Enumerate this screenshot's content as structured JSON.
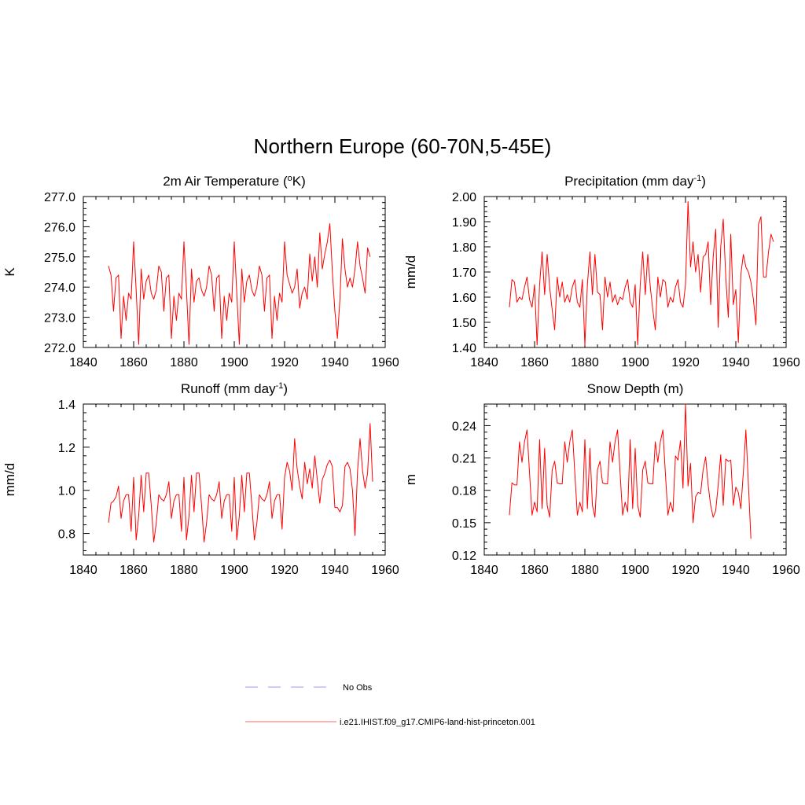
{
  "title": "Northern Europe (60-70N,5-45E)",
  "legend": [
    {
      "label": "No Obs",
      "color": "#9999ff",
      "style": "dashed"
    },
    {
      "label": "i.e21.IHIST.f09_g17.CMIP6-land-hist-princeton.001",
      "color": "#ff6666",
      "style": "solid"
    }
  ],
  "chart_data": [
    {
      "type": "line",
      "title": "2m Air Temperature (",
      "title_sup": "o",
      "title_end": "K)",
      "ylabel": "K",
      "xlim": [
        1840,
        1960
      ],
      "ylim": [
        272.0,
        277.0
      ],
      "xticks": [
        1840,
        1860,
        1880,
        1900,
        1920,
        1940,
        1960
      ],
      "yticks": [
        272.0,
        273.0,
        274.0,
        275.0,
        276.0,
        277.0
      ],
      "ytick_labels": [
        "272.0",
        "273.0",
        "274.0",
        "275.0",
        "276.0",
        "277.0"
      ],
      "color": "#ff0000",
      "x_start": 1850,
      "values": [
        274.7,
        274.4,
        273.2,
        274.3,
        274.4,
        272.3,
        273.7,
        272.9,
        273.8,
        273.6,
        275.5,
        273.9,
        272.1,
        274.6,
        273.6,
        274.2,
        274.4,
        273.8,
        273.6,
        273.9,
        274.7,
        274.5,
        273.2,
        274.3,
        274.4,
        272.3,
        273.7,
        272.9,
        273.8,
        273.6,
        275.5,
        273.9,
        272.1,
        274.6,
        273.5,
        274.2,
        274.3,
        273.9,
        273.7,
        274.0,
        274.7,
        274.4,
        273.2,
        274.3,
        274.4,
        272.3,
        273.7,
        272.9,
        273.8,
        273.5,
        275.5,
        273.8,
        272.1,
        274.6,
        273.5,
        274.2,
        274.4,
        273.9,
        273.7,
        274.0,
        274.7,
        274.4,
        273.2,
        274.3,
        274.4,
        272.3,
        273.7,
        272.9,
        273.8,
        273.5,
        275.5,
        274.4,
        274.1,
        273.8,
        274.0,
        274.6,
        273.3,
        273.8,
        274.0,
        273.6,
        275.1,
        274.2,
        275.0,
        274.0,
        275.8,
        274.6,
        275.1,
        275.5,
        276.1,
        274.5,
        273.2,
        272.3,
        273.6,
        275.6,
        274.6,
        274.0,
        274.3,
        274.0,
        274.6,
        275.5,
        274.7,
        274.3,
        273.8,
        275.3,
        275.0
      ]
    },
    {
      "type": "line",
      "title": "Precipitation (mm day",
      "title_sup": "-1",
      "title_end": ")",
      "ylabel": "mm/d",
      "xlim": [
        1840,
        1960
      ],
      "ylim": [
        1.4,
        2.0
      ],
      "xticks": [
        1840,
        1860,
        1880,
        1900,
        1920,
        1940,
        1960
      ],
      "yticks": [
        1.4,
        1.5,
        1.6,
        1.7,
        1.8,
        1.9,
        2.0
      ],
      "ytick_labels": [
        "1.40",
        "1.50",
        "1.60",
        "1.70",
        "1.80",
        "1.90",
        "2.00"
      ],
      "color": "#ff0000",
      "x_start": 1850,
      "values": [
        1.56,
        1.67,
        1.66,
        1.58,
        1.6,
        1.59,
        1.64,
        1.68,
        1.59,
        1.56,
        1.65,
        1.41,
        1.65,
        1.78,
        1.61,
        1.77,
        1.64,
        1.55,
        1.47,
        1.68,
        1.6,
        1.66,
        1.58,
        1.61,
        1.58,
        1.64,
        1.67,
        1.58,
        1.56,
        1.67,
        1.41,
        1.65,
        1.78,
        1.61,
        1.77,
        1.62,
        1.61,
        1.47,
        1.68,
        1.6,
        1.66,
        1.58,
        1.61,
        1.57,
        1.6,
        1.59,
        1.64,
        1.67,
        1.58,
        1.56,
        1.65,
        1.41,
        1.65,
        1.78,
        1.61,
        1.77,
        1.64,
        1.55,
        1.47,
        1.68,
        1.6,
        1.67,
        1.66,
        1.56,
        1.6,
        1.58,
        1.64,
        1.67,
        1.58,
        1.56,
        1.65,
        1.98,
        1.72,
        1.82,
        1.7,
        1.77,
        1.62,
        1.76,
        1.77,
        1.82,
        1.57,
        1.76,
        1.87,
        1.48,
        1.8,
        1.91,
        1.68,
        1.52,
        1.85,
        1.57,
        1.63,
        1.42,
        1.69,
        1.77,
        1.72,
        1.7,
        1.66,
        1.59,
        1.49,
        1.89,
        1.92,
        1.68,
        1.68,
        1.78,
        1.85,
        1.82
      ]
    },
    {
      "type": "line",
      "title": "Runoff (mm day",
      "title_sup": "-1",
      "title_end": ")",
      "ylabel": "mm/d",
      "xlim": [
        1840,
        1960
      ],
      "ylim": [
        0.7,
        1.4
      ],
      "xticks": [
        1840,
        1860,
        1880,
        1900,
        1920,
        1940,
        1960
      ],
      "yticks": [
        0.8,
        1.0,
        1.2,
        1.4
      ],
      "ytick_labels": [
        "0.8",
        "1.0",
        "1.2",
        "1.4"
      ],
      "color": "#ff0000",
      "x_start": 1850,
      "values": [
        0.85,
        0.94,
        0.95,
        0.97,
        1.02,
        0.87,
        0.95,
        0.98,
        0.98,
        0.81,
        1.06,
        0.77,
        0.88,
        1.07,
        0.9,
        1.08,
        1.08,
        0.93,
        0.76,
        0.85,
        0.98,
        0.96,
        0.95,
        0.98,
        1.04,
        0.87,
        0.95,
        0.98,
        0.98,
        0.81,
        1.06,
        0.77,
        0.88,
        1.07,
        0.9,
        1.08,
        1.08,
        0.93,
        0.76,
        0.85,
        0.98,
        0.96,
        0.95,
        0.98,
        1.04,
        0.87,
        0.95,
        0.98,
        0.98,
        0.81,
        1.06,
        0.77,
        0.88,
        1.07,
        0.9,
        1.08,
        1.08,
        0.93,
        0.77,
        0.85,
        0.98,
        0.96,
        0.95,
        0.98,
        1.04,
        0.87,
        0.95,
        0.98,
        0.98,
        0.82,
        1.06,
        1.13,
        1.09,
        1.0,
        1.24,
        1.1,
        1.02,
        0.96,
        1.13,
        1.03,
        1.1,
        1.01,
        1.16,
        1.05,
        0.94,
        1.05,
        1.08,
        1.12,
        1.14,
        1.11,
        0.92,
        0.92,
        0.9,
        0.93,
        1.11,
        1.13,
        1.1,
        1.0,
        0.79,
        1.09,
        1.24,
        1.09,
        1.01,
        1.08,
        1.31,
        1.04
      ]
    },
    {
      "type": "line",
      "title": "Snow Depth (m)",
      "title_sup": "",
      "title_end": "",
      "ylabel": "m",
      "xlim": [
        1840,
        1960
      ],
      "ylim": [
        0.12,
        0.26
      ],
      "xticks": [
        1840,
        1860,
        1880,
        1900,
        1920,
        1940,
        1960
      ],
      "yticks": [
        0.12,
        0.15,
        0.18,
        0.21,
        0.24
      ],
      "ytick_labels": [
        "0.12",
        "0.15",
        "0.18",
        "0.21",
        "0.24"
      ],
      "color": "#ff0000",
      "x_start": 1850,
      "values": [
        0.157,
        0.187,
        0.185,
        0.185,
        0.225,
        0.206,
        0.225,
        0.236,
        0.196,
        0.157,
        0.169,
        0.16,
        0.227,
        0.163,
        0.219,
        0.166,
        0.155,
        0.199,
        0.207,
        0.187,
        0.186,
        0.186,
        0.225,
        0.206,
        0.225,
        0.236,
        0.196,
        0.157,
        0.169,
        0.16,
        0.227,
        0.163,
        0.219,
        0.166,
        0.155,
        0.199,
        0.207,
        0.187,
        0.186,
        0.186,
        0.225,
        0.206,
        0.225,
        0.236,
        0.196,
        0.157,
        0.169,
        0.16,
        0.227,
        0.163,
        0.219,
        0.166,
        0.155,
        0.199,
        0.207,
        0.187,
        0.186,
        0.186,
        0.225,
        0.206,
        0.225,
        0.236,
        0.196,
        0.157,
        0.169,
        0.16,
        0.212,
        0.208,
        0.226,
        0.182,
        0.26,
        0.184,
        0.205,
        0.15,
        0.174,
        0.178,
        0.177,
        0.199,
        0.211,
        0.185,
        0.166,
        0.155,
        0.161,
        0.185,
        0.213,
        0.166,
        0.209,
        0.207,
        0.208,
        0.166,
        0.183,
        0.178,
        0.163,
        0.197,
        0.236,
        0.186,
        0.135
      ]
    }
  ]
}
